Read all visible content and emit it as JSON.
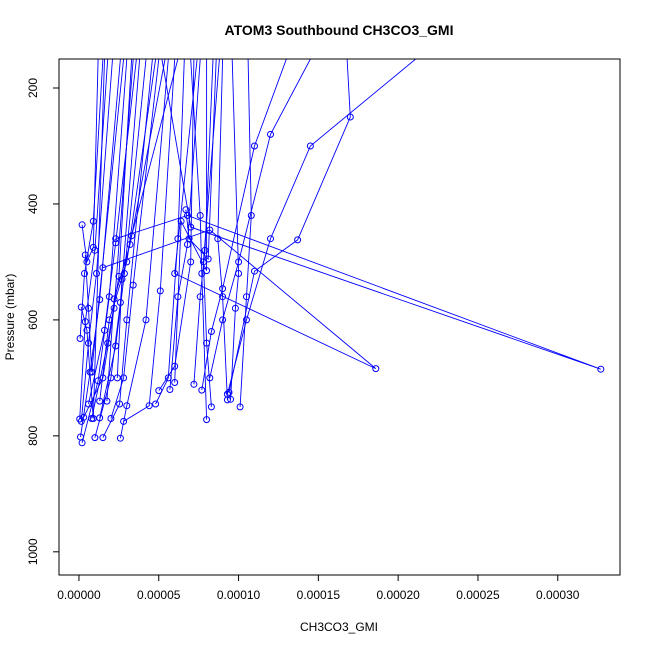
{
  "chart_data": {
    "type": "line",
    "title": "ATOM3 Southbound CH3CO3_GMI",
    "xlabel": "CH3CO3_GMI",
    "ylabel": "Pressure (mbar)",
    "xlim": [
      -1.25e-05,
      0.000339
    ],
    "ylim": [
      1040,
      150
    ],
    "y_reversed": true,
    "xticks": [
      0,
      5e-05,
      0.0001,
      0.00015,
      0.0002,
      0.00025,
      0.0003
    ],
    "xtick_labels": [
      "0.00000",
      "0.00005",
      "0.00010",
      "0.00015",
      "0.00020",
      "0.00025",
      "0.00030"
    ],
    "yticks": [
      200,
      400,
      600,
      800,
      1000
    ],
    "ytick_labels": [
      "200",
      "400",
      "600",
      "800",
      "1000"
    ],
    "color": "#0000ff",
    "grid": false,
    "series": [
      {
        "points": [
          [
            5e-07,
            771
          ],
          [
            4e-06,
            603
          ],
          [
            1e-05,
            480
          ],
          [
            1.8e-05,
            150
          ]
        ]
      },
      {
        "points": [
          [
            1e-06,
            802
          ],
          [
            7e-06,
            690
          ],
          [
            1.3e-05,
            565
          ],
          [
            2.6e-05,
            150
          ]
        ]
      },
      {
        "points": [
          [
            1.5e-06,
            775
          ],
          [
            6e-06,
            640
          ],
          [
            1.1e-05,
            520
          ],
          [
            2.1e-05,
            150
          ]
        ]
      },
      {
        "points": [
          [
            7e-07,
            632
          ],
          [
            3.5e-06,
            520
          ],
          [
            9e-06,
            430
          ],
          [
            1.5e-05,
            150
          ]
        ]
      },
      {
        "points": [
          [
            2e-06,
            812
          ],
          [
            1.2e-05,
            705
          ],
          [
            1.9e-05,
            560
          ],
          [
            3e-05,
            150
          ]
        ]
      },
      {
        "points": [
          [
            3e-06,
            768
          ],
          [
            1.5e-05,
            700
          ],
          [
            2.2e-05,
            580
          ],
          [
            3.4e-05,
            150
          ]
        ]
      },
      {
        "points": [
          [
            8e-06,
            770
          ],
          [
            1.8e-05,
            640
          ],
          [
            2.5e-05,
            525
          ],
          [
            3.3e-05,
            150
          ]
        ]
      },
      {
        "points": [
          [
            1e-05,
            803
          ],
          [
            2e-05,
            700
          ],
          [
            2.6e-05,
            570
          ],
          [
            3.8e-05,
            150
          ]
        ]
      },
      {
        "points": [
          [
            1.3e-05,
            769
          ],
          [
            2.3e-05,
            645
          ],
          [
            2.85e-05,
            520
          ],
          [
            4.2e-05,
            150
          ]
        ]
      },
      {
        "points": [
          [
            1.5e-05,
            803
          ],
          [
            2.55e-05,
            745
          ],
          [
            3e-05,
            600
          ],
          [
            4.6e-05,
            150
          ]
        ]
      },
      {
        "points": [
          [
            2e-05,
            770
          ],
          [
            2.8e-05,
            700
          ],
          [
            3.4e-05,
            540
          ],
          [
            5e-05,
            150
          ]
        ]
      },
      {
        "points": [
          [
            2.6e-05,
            804
          ],
          [
            3e-05,
            748
          ],
          [
            4.2e-05,
            600
          ],
          [
            5.6e-05,
            150
          ]
        ]
      },
      {
        "points": [
          [
            2.8e-05,
            775
          ],
          [
            4.4e-05,
            748
          ],
          [
            5.1e-05,
            550
          ],
          [
            6e-05,
            150
          ]
        ]
      },
      {
        "points": [
          [
            4.8e-05,
            745
          ],
          [
            5.6e-05,
            700
          ],
          [
            6.2e-05,
            460
          ],
          [
            6.6e-05,
            150
          ]
        ]
      },
      {
        "points": [
          [
            5e-05,
            722
          ],
          [
            6e-05,
            680
          ],
          [
            7e-05,
            500
          ],
          [
            7.2e-05,
            150
          ]
        ]
      },
      {
        "points": [
          [
            5.7e-05,
            720
          ],
          [
            6.2e-05,
            560
          ],
          [
            6.8e-05,
            470
          ],
          [
            7.6e-05,
            150
          ]
        ]
      },
      {
        "points": [
          [
            7.2e-05,
            711
          ],
          [
            7.6e-05,
            560
          ],
          [
            7.9e-05,
            480
          ],
          [
            8.4e-05,
            150
          ]
        ]
      },
      {
        "points": [
          [
            8e-05,
            772
          ],
          [
            7.7e-05,
            520
          ],
          [
            7.6e-05,
            420
          ],
          [
            7e-05,
            150
          ]
        ]
      },
      {
        "points": [
          [
            8.3e-05,
            750
          ],
          [
            8e-05,
            640
          ],
          [
            7.8e-05,
            500
          ],
          [
            8.8e-05,
            150
          ]
        ]
      },
      {
        "points": [
          [
            9.3e-05,
            738
          ],
          [
            9e-05,
            560
          ],
          [
            8.7e-05,
            460
          ],
          [
            9e-05,
            150
          ]
        ]
      },
      {
        "points": [
          [
            9.5e-05,
            737
          ],
          [
            9.8e-05,
            580
          ],
          [
            0.0001,
            520
          ],
          [
            9.6e-05,
            150
          ]
        ]
      },
      {
        "points": [
          [
            0.000101,
            750
          ],
          [
            0.000105,
            560
          ],
          [
            0.000108,
            420
          ],
          [
            0.000106,
            150
          ]
        ]
      },
      {
        "points": [
          [
            7.7e-05,
            721
          ],
          [
            8.3e-05,
            620
          ],
          [
            9e-05,
            546
          ],
          [
            0.00011,
            300
          ],
          [
            0.00013,
            150
          ]
        ]
      },
      {
        "points": [
          [
            8.2e-05,
            700
          ],
          [
            9e-05,
            600
          ],
          [
            0.0001,
            500
          ],
          [
            0.00012,
            280
          ],
          [
            0.000145,
            150
          ]
        ]
      },
      {
        "points": [
          [
            9.4e-05,
            725
          ],
          [
            0.00011,
            516
          ],
          [
            0.000137,
            462
          ],
          [
            0.00017,
            250
          ],
          [
            0.000168,
            150
          ]
        ]
      },
      {
        "points": [
          [
            9.3e-05,
            728
          ],
          [
            0.000105,
            600
          ],
          [
            0.00012,
            460
          ],
          [
            0.000145,
            300
          ],
          [
            0.000211,
            150
          ]
        ]
      },
      {
        "points": [
          [
            2.3e-05,
            460
          ],
          [
            6.8e-05,
            420
          ],
          [
            0.000327,
            685
          ],
          [
            7e-05,
            440
          ],
          [
            5.2e-05,
            150
          ]
        ]
      },
      {
        "points": [
          [
            1.5e-05,
            510
          ],
          [
            8.2e-05,
            445
          ],
          [
            0.000186,
            684
          ],
          [
            6e-05,
            520
          ],
          [
            7.4e-05,
            150
          ]
        ]
      },
      {
        "points": [
          [
            2e-06,
            436
          ],
          [
            5e-06,
            500
          ],
          [
            9e-06,
            475
          ],
          [
            1.2e-05,
            150
          ]
        ]
      },
      {
        "points": [
          [
            4e-06,
            488
          ],
          [
            6e-06,
            580
          ],
          [
            8e-06,
            690
          ],
          [
            2.8e-05,
            150
          ]
        ]
      },
      {
        "points": [
          [
            1.5e-06,
            578
          ],
          [
            5e-06,
            618
          ],
          [
            9e-06,
            770
          ],
          [
            1.6e-05,
            150
          ]
        ]
      },
      {
        "points": [
          [
            6e-06,
            745
          ],
          [
            1.6e-05,
            618
          ],
          [
            2.3e-05,
            467
          ],
          [
            3.6e-05,
            150
          ]
        ]
      },
      {
        "points": [
          [
            1.3e-05,
            740
          ],
          [
            1.9e-05,
            600
          ],
          [
            3e-05,
            500
          ],
          [
            4.8e-05,
            150
          ]
        ]
      },
      {
        "points": [
          [
            1.75e-05,
            740
          ],
          [
            2.2e-05,
            564
          ],
          [
            3.2e-05,
            470
          ],
          [
            5.4e-05,
            150
          ]
        ]
      },
      {
        "points": [
          [
            2.4e-05,
            700
          ],
          [
            2.7e-05,
            530
          ],
          [
            3.3e-05,
            455
          ],
          [
            6.2e-05,
            150
          ]
        ]
      },
      {
        "points": [
          [
            6e-05,
            708
          ],
          [
            6.4e-05,
            430
          ],
          [
            8e-05,
            515
          ],
          [
            8e-05,
            150
          ]
        ]
      },
      {
        "points": [
          [
            6.7e-05,
            410
          ],
          [
            6.9e-05,
            460
          ],
          [
            8.1e-05,
            495
          ],
          [
            8.6e-05,
            150
          ]
        ]
      }
    ]
  }
}
